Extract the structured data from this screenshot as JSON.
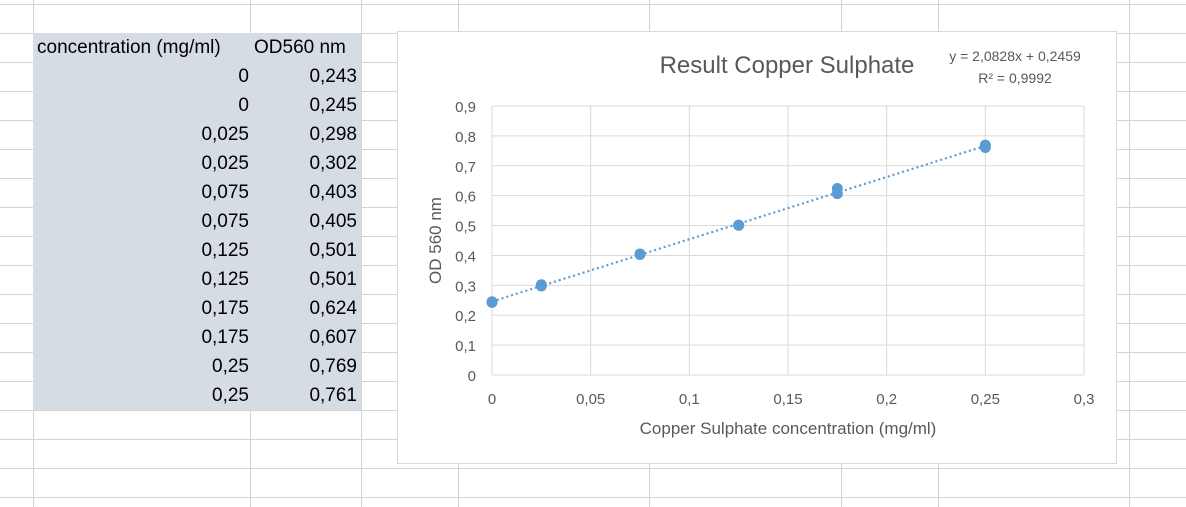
{
  "table": {
    "headers": [
      "concentration (mg/ml)",
      "OD560 nm"
    ],
    "rows": [
      [
        "0",
        "0,243"
      ],
      [
        "0",
        "0,245"
      ],
      [
        "0,025",
        "0,298"
      ],
      [
        "0,025",
        "0,302"
      ],
      [
        "0,075",
        "0,403"
      ],
      [
        "0,075",
        "0,405"
      ],
      [
        "0,125",
        "0,501"
      ],
      [
        "0,125",
        "0,501"
      ],
      [
        "0,175",
        "0,624"
      ],
      [
        "0,175",
        "0,607"
      ],
      [
        "0,25",
        "0,769"
      ],
      [
        "0,25",
        "0,761"
      ]
    ]
  },
  "chart_data": {
    "type": "scatter",
    "title": "Result Copper Sulphate",
    "xlabel": "Copper Sulphate concentration (mg/ml)",
    "ylabel": "OD 560 nm",
    "xlim": [
      0,
      0.3
    ],
    "ylim": [
      0,
      0.9
    ],
    "x_ticks": [
      "0",
      "0,05",
      "0,1",
      "0,15",
      "0,2",
      "0,25",
      "0,3"
    ],
    "y_ticks": [
      "0",
      "0,1",
      "0,2",
      "0,3",
      "0,4",
      "0,5",
      "0,6",
      "0,7",
      "0,8",
      "0,9"
    ],
    "grid": true,
    "series": [
      {
        "x": [
          0,
          0,
          0.025,
          0.025,
          0.075,
          0.075,
          0.125,
          0.125,
          0.175,
          0.175,
          0.25,
          0.25
        ],
        "y": [
          0.243,
          0.245,
          0.298,
          0.302,
          0.403,
          0.405,
          0.501,
          0.501,
          0.624,
          0.607,
          0.769,
          0.761
        ],
        "color": "#5b9bd5"
      }
    ],
    "trendline": {
      "type": "linear",
      "slope": 2.0828,
      "intercept": 0.2459,
      "equation": "y = 2,0828x + 0,2459",
      "r2": "R² = 0,9992",
      "color": "#5b9bd5",
      "style": "dotted"
    }
  }
}
